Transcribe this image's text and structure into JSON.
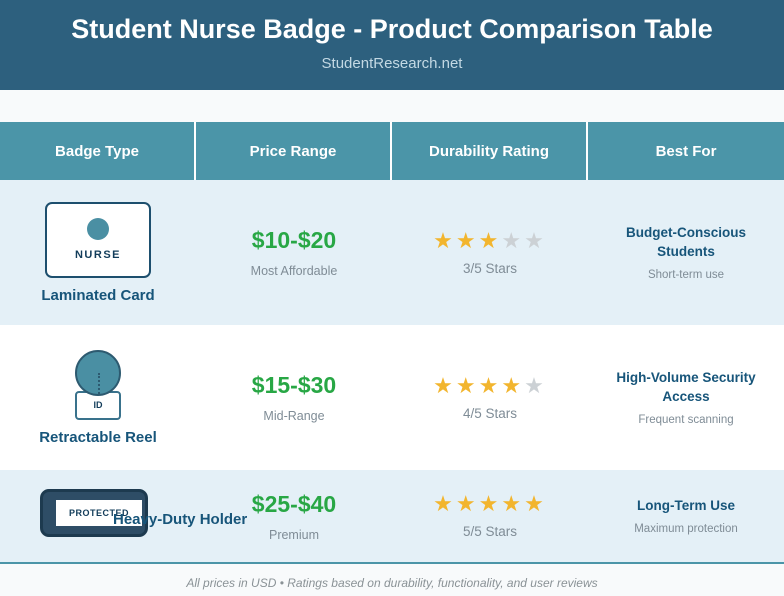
{
  "banner": {
    "title": "Student Nurse Badge - Product Comparison Table",
    "subtitle": "StudentResearch.net"
  },
  "columns": [
    {
      "label": "Badge Type"
    },
    {
      "label": "Price Range"
    },
    {
      "label": "Durability Rating"
    },
    {
      "label": "Best For"
    }
  ],
  "rows": [
    {
      "badge": {
        "label": "Laminated Card",
        "icon_text": "NURSE"
      },
      "price": {
        "range": "$10-$20",
        "note": "Most Affordable"
      },
      "rating": {
        "stars": 3,
        "max": 5,
        "label": "3/5 Stars"
      },
      "best_for": {
        "title": "Budget-Conscious Students",
        "note": "Short-term use"
      }
    },
    {
      "badge": {
        "label": "Retractable Reel",
        "icon_text": "ID"
      },
      "price": {
        "range": "$15-$30",
        "note": "Mid-Range"
      },
      "rating": {
        "stars": 4,
        "max": 5,
        "label": "4/5 Stars"
      },
      "best_for": {
        "title": "High-Volume Security Access",
        "note": "Frequent scanning"
      }
    },
    {
      "badge": {
        "label": "Heavy-Duty Holder",
        "icon_text": "PROTECTED"
      },
      "price": {
        "range": "$25-$40",
        "note": "Premium"
      },
      "rating": {
        "stars": 5,
        "max": 5,
        "label": "5/5 Stars"
      },
      "best_for": {
        "title": "Long-Term Use",
        "note": "Maximum protection"
      }
    }
  ],
  "footer": {
    "note": "All prices in USD • Ratings based on durability, functionality, and user reviews"
  },
  "colors": {
    "banner_bg": "#2d607e",
    "table_header_bg": "#4b95a8",
    "row_alt_bg": "#e4f0f7",
    "accent_navy": "#17557a",
    "price_green": "#28a745",
    "muted_gray": "#7f8c96",
    "star_gold": "#f2b52e",
    "star_empty": "#ccd1d5",
    "icon_teal": "#4a8fa3"
  }
}
